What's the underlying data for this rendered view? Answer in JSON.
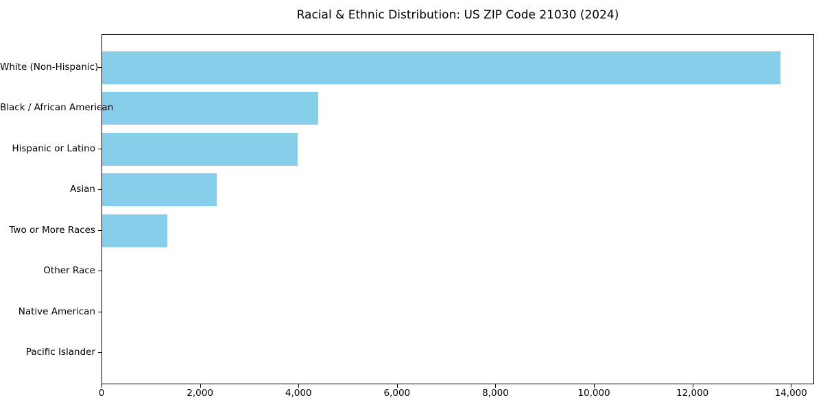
{
  "chart_data": {
    "type": "bar",
    "orientation": "horizontal",
    "title": "Racial & Ethnic Distribution: US ZIP Code 21030 (2024)",
    "categories": [
      "White (Non-Hispanic)",
      "Black / African American",
      "Hispanic or Latino",
      "Asian",
      "Two or More Races",
      "Other Race",
      "Native American",
      "Pacific Islander"
    ],
    "values": [
      13780,
      4390,
      3970,
      2330,
      1320,
      0,
      0,
      0
    ],
    "xlabel": "",
    "ylabel": "",
    "xlim": [
      0,
      14470
    ],
    "x_ticks": [
      {
        "value": 0,
        "label": "0"
      },
      {
        "value": 2000,
        "label": "2,000"
      },
      {
        "value": 4000,
        "label": "4,000"
      },
      {
        "value": 6000,
        "label": "6,000"
      },
      {
        "value": 8000,
        "label": "8,000"
      },
      {
        "value": 10000,
        "label": "10,000"
      },
      {
        "value": 12000,
        "label": "12,000"
      },
      {
        "value": 14000,
        "label": "14,000"
      }
    ],
    "bar_color": "#87CEEB",
    "grid": false,
    "legend": null
  }
}
